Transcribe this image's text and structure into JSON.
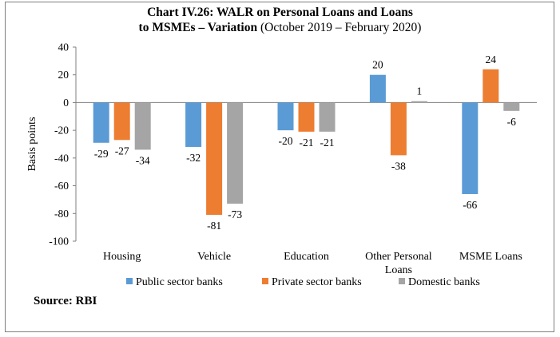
{
  "title_line1": "Chart IV.26: WALR on Personal Loans and Loans",
  "title_line2_bold": "to MSMEs – Variation",
  "title_line2_rest": " (October 2019 – February 2020)",
  "source": "Source: RBI",
  "colors": {
    "public": "#5b9bd5",
    "private": "#ed7d31",
    "domestic": "#a5a5a5"
  },
  "chart_data": {
    "type": "bar",
    "title": "Chart IV.26: WALR on Personal Loans and Loans to MSMEs – Variation (October 2019 – February 2020)",
    "xlabel": "",
    "ylabel": "Basis points",
    "ylim": [
      -100,
      40
    ],
    "yticks": [
      40,
      20,
      0,
      -20,
      -40,
      -60,
      -80,
      -100
    ],
    "categories": [
      [
        "Housing"
      ],
      [
        "Vehicle"
      ],
      [
        "Education"
      ],
      [
        "Other Personal",
        "Loans"
      ],
      [
        "MSME Loans"
      ]
    ],
    "series": [
      {
        "name": "Public sector banks",
        "values": [
          -29,
          -32,
          -20,
          20,
          -66
        ]
      },
      {
        "name": "Private sector banks",
        "values": [
          -27,
          -81,
          -21,
          -38,
          24
        ]
      },
      {
        "name": "Domestic banks",
        "values": [
          -34,
          -73,
          -21,
          1,
          -6
        ]
      }
    ],
    "legend_position": "bottom"
  }
}
